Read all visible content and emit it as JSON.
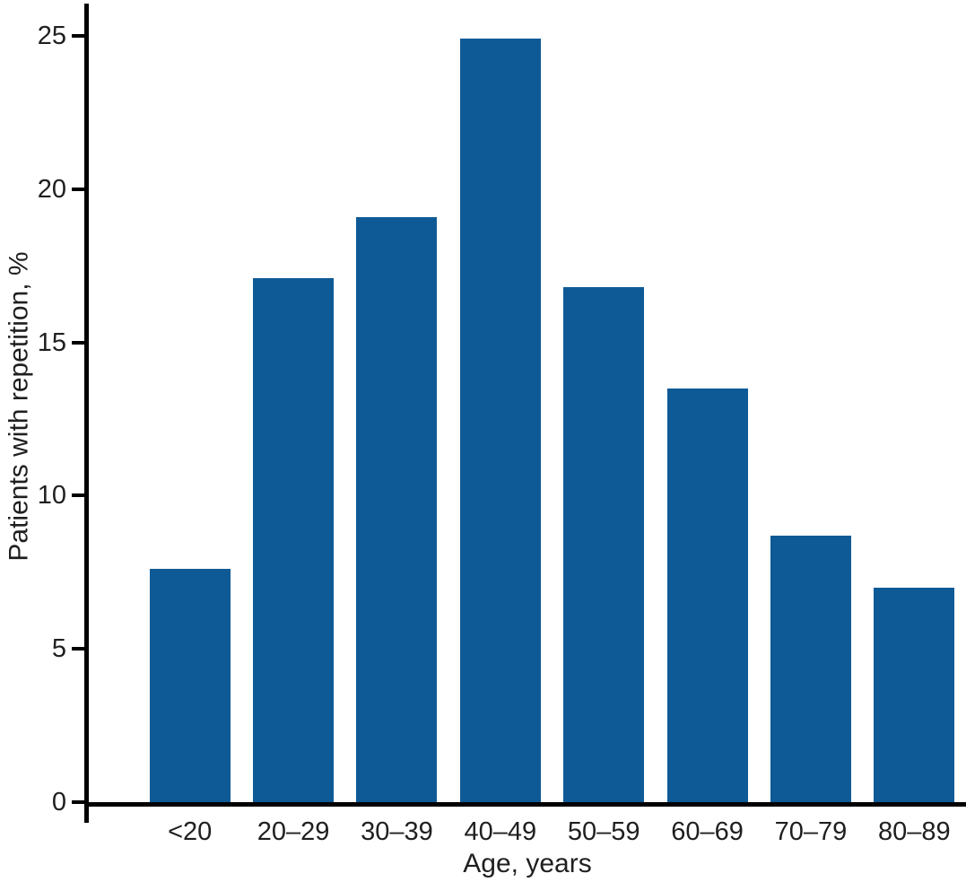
{
  "chart_data": {
    "type": "bar",
    "title": "",
    "xlabel": "Age, years",
    "ylabel": "Patients with repetition, %",
    "categories": [
      "<20",
      "20–29",
      "30–39",
      "40–49",
      "50–59",
      "60–69",
      "70–79",
      "80–89"
    ],
    "values": [
      7.6,
      17.1,
      19.1,
      24.9,
      16.8,
      13.5,
      8.7,
      7.0
    ],
    "ylim": [
      0,
      25
    ],
    "yticks": [
      0,
      5,
      10,
      15,
      20,
      25
    ],
    "bar_color": "#0e5a96",
    "axis_color": "#000000",
    "text_color": "#1f1f1f",
    "grid": false,
    "legend_position": "none"
  }
}
